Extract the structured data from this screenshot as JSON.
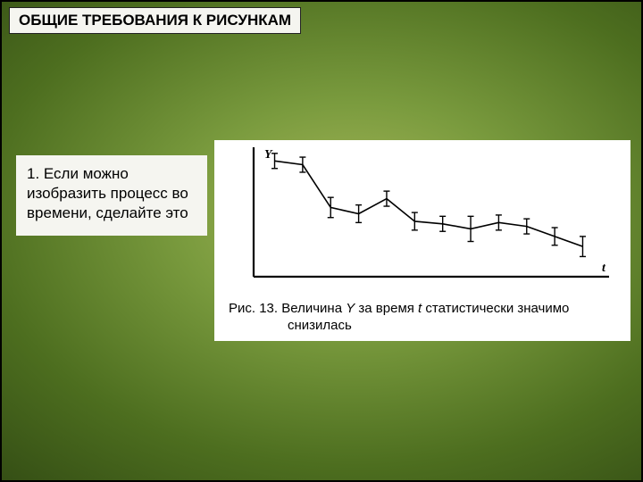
{
  "header": {
    "title": "ОБЩИЕ ТРЕБОВАНИЯ К РИСУНКАМ"
  },
  "body": {
    "text": "1. Если можно изобразить процесс во времени, сделайте это"
  },
  "chart": {
    "type": "line",
    "y_label": "Y",
    "x_label": "t",
    "xlim": [
      0,
      100
    ],
    "ylim": [
      0,
      100
    ],
    "axis_color": "#000000",
    "axis_width": 2.2,
    "line_color": "#000000",
    "line_width": 1.6,
    "errorbar_color": "#000000",
    "errorbar_width": 1.4,
    "errorbar_cap": 3.5,
    "font_family": "serif",
    "label_fontsize": 14,
    "label_fontweight": "bold",
    "points": [
      {
        "x": 6,
        "y": 92,
        "err": 6
      },
      {
        "x": 14,
        "y": 89,
        "err": 6
      },
      {
        "x": 22,
        "y": 55,
        "err": 8
      },
      {
        "x": 30,
        "y": 50,
        "err": 7
      },
      {
        "x": 38,
        "y": 62,
        "err": 6
      },
      {
        "x": 46,
        "y": 44,
        "err": 7
      },
      {
        "x": 54,
        "y": 42,
        "err": 6
      },
      {
        "x": 62,
        "y": 38,
        "err": 10
      },
      {
        "x": 70,
        "y": 43,
        "err": 6
      },
      {
        "x": 78,
        "y": 40,
        "err": 6
      },
      {
        "x": 86,
        "y": 32,
        "err": 7
      },
      {
        "x": 94,
        "y": 24,
        "err": 8
      }
    ]
  },
  "caption": {
    "prefix": "Рис. 13. Величина ",
    "var1": "Y",
    "mid": " за время ",
    "var2": "t",
    "suffix1": " статистически значимо",
    "suffix2": "снизилась"
  },
  "colors": {
    "box_bg": "#f5f5f0",
    "chart_bg": "#ffffff"
  }
}
